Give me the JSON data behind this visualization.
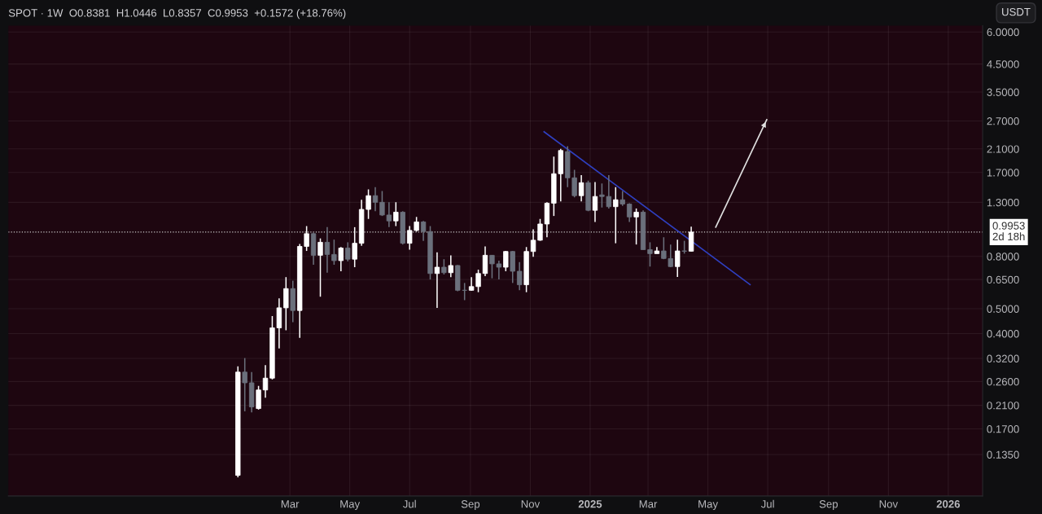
{
  "chart_data": {
    "type": "candlestick",
    "title": "SPOT · 1W  O0.8381  H1.0446  L0.8357  C0.9953  +0.1572 (+18.76%)",
    "log": "y",
    "grid": true,
    "xlim": [
      "2023-05-19",
      "2026-02-05"
    ],
    "xticks": [
      {
        "value": "2024-03-01",
        "label": "Mar"
      },
      {
        "value": "2024-05-01",
        "label": "May"
      },
      {
        "value": "2024-07-01",
        "label": "Jul"
      },
      {
        "value": "2024-09-01",
        "label": "Sep"
      },
      {
        "value": "2024-11-01",
        "label": "Nov"
      },
      {
        "value": "2025-01-01",
        "label": "2025"
      },
      {
        "value": "2025-03-01",
        "label": "Mar"
      },
      {
        "value": "2025-05-01",
        "label": "May"
      },
      {
        "value": "2025-07-01",
        "label": "Jul"
      },
      {
        "value": "2025-09-01",
        "label": "Sep"
      },
      {
        "value": "2025-11-01",
        "label": "Nov"
      },
      {
        "value": "2026-01-01",
        "label": "2026"
      }
    ],
    "ylim": [
      0.093,
      6.35
    ],
    "yticks": [
      {
        "value": 0.135,
        "label": "0.1350"
      },
      {
        "value": 0.17,
        "label": "0.1700"
      },
      {
        "value": 0.21,
        "label": "0.2100"
      },
      {
        "value": 0.26,
        "label": "0.2600"
      },
      {
        "value": 0.32,
        "label": "0.3200"
      },
      {
        "value": 0.4,
        "label": "0.4000"
      },
      {
        "value": 0.5,
        "label": "0.5000"
      },
      {
        "value": 0.65,
        "label": "0.6500"
      },
      {
        "value": 0.8,
        "label": "0.8000"
      },
      {
        "value": 1.3,
        "label": "1.3000"
      },
      {
        "value": 1.7,
        "label": "1.7000"
      },
      {
        "value": 2.1,
        "label": "2.1000"
      },
      {
        "value": 2.7,
        "label": "2.7000"
      },
      {
        "value": 3.5,
        "label": "3.5000"
      },
      {
        "value": 4.5,
        "label": "4.5000"
      },
      {
        "value": 6,
        "label": "6.0000"
      }
    ],
    "ref_lines": [
      {
        "axis": "y",
        "value": 0.9953,
        "label": "0.9953\n2d 18h",
        "color": "#c8c8c8",
        "line_style": "dotted"
      }
    ],
    "annotations": [
      "USDT"
    ],
    "x": [
      "2024-01-08",
      "2024-01-15",
      "2024-01-22",
      "2024-01-29",
      "2024-02-05",
      "2024-02-12",
      "2024-02-19",
      "2024-02-26",
      "2024-03-04",
      "2024-03-11",
      "2024-03-18",
      "2024-03-25",
      "2024-04-01",
      "2024-04-08",
      "2024-04-15",
      "2024-04-22",
      "2024-04-29",
      "2024-05-06",
      "2024-05-13",
      "2024-05-20",
      "2024-05-27",
      "2024-06-03",
      "2024-06-10",
      "2024-06-17",
      "2024-06-24",
      "2024-07-01",
      "2024-07-08",
      "2024-07-15",
      "2024-07-22",
      "2024-07-29",
      "2024-08-05",
      "2024-08-12",
      "2024-08-19",
      "2024-08-26",
      "2024-09-02",
      "2024-09-09",
      "2024-09-16",
      "2024-09-23",
      "2024-09-30",
      "2024-10-07",
      "2024-10-14",
      "2024-10-21",
      "2024-10-28",
      "2024-11-04",
      "2024-11-11",
      "2024-11-18",
      "2024-11-25",
      "2024-12-02",
      "2024-12-09",
      "2024-12-16",
      "2024-12-23",
      "2024-12-30",
      "2025-01-06",
      "2025-01-13",
      "2025-01-20",
      "2025-01-27",
      "2025-02-03",
      "2025-02-10",
      "2025-02-17",
      "2025-02-24",
      "2025-03-03",
      "2025-03-10",
      "2025-03-17",
      "2025-03-24",
      "2025-03-31",
      "2025-04-07",
      "2025-04-14"
    ],
    "ohlc": [
      [
        0.112,
        0.298,
        0.11,
        0.283
      ],
      [
        0.283,
        0.321,
        0.199,
        0.257
      ],
      [
        0.257,
        0.283,
        0.197,
        0.207
      ],
      [
        0.204,
        0.25,
        0.202,
        0.241
      ],
      [
        0.241,
        0.301,
        0.225,
        0.268
      ],
      [
        0.268,
        0.468,
        0.265,
        0.421
      ],
      [
        0.421,
        0.549,
        0.35,
        0.504
      ],
      [
        0.504,
        0.664,
        0.412,
        0.599
      ],
      [
        0.599,
        0.643,
        0.443,
        0.492
      ],
      [
        0.492,
        0.894,
        0.385,
        0.875
      ],
      [
        0.875,
        1.05,
        0.84,
        0.981
      ],
      [
        0.981,
        0.99,
        0.742,
        0.808
      ],
      [
        0.808,
        0.94,
        0.557,
        0.908
      ],
      [
        0.908,
        1.04,
        0.691,
        0.814
      ],
      [
        0.814,
        0.93,
        0.742,
        0.77
      ],
      [
        0.77,
        0.87,
        0.7,
        0.862
      ],
      [
        0.862,
        0.908,
        0.765,
        0.78
      ],
      [
        0.78,
        1.04,
        0.726,
        0.9
      ],
      [
        0.9,
        1.33,
        0.88,
        1.22
      ],
      [
        1.22,
        1.46,
        1.12,
        1.38
      ],
      [
        1.38,
        1.49,
        1.2,
        1.3
      ],
      [
        1.3,
        1.44,
        1.15,
        1.16
      ],
      [
        1.16,
        1.3,
        1.04,
        1.1
      ],
      [
        1.1,
        1.3,
        1.05,
        1.19
      ],
      [
        1.19,
        1.2,
        0.89,
        0.9
      ],
      [
        0.9,
        1.05,
        0.85,
        1.01
      ],
      [
        1.01,
        1.14,
        1.0,
        1.09
      ],
      [
        1.09,
        1.1,
        0.92,
        1.0
      ],
      [
        1.0,
        1.05,
        0.65,
        0.686
      ],
      [
        0.686,
        0.83,
        0.504,
        0.726
      ],
      [
        0.726,
        0.78,
        0.68,
        0.691
      ],
      [
        0.691,
        0.808,
        0.664,
        0.737
      ],
      [
        0.737,
        0.74,
        0.585,
        0.59
      ],
      [
        0.59,
        0.63,
        0.54,
        0.59
      ],
      [
        0.59,
        0.664,
        0.587,
        0.61
      ],
      [
        0.61,
        0.71,
        0.58,
        0.686
      ],
      [
        0.686,
        0.875,
        0.67,
        0.808
      ],
      [
        0.808,
        0.81,
        0.657,
        0.748
      ],
      [
        0.748,
        0.77,
        0.65,
        0.726
      ],
      [
        0.726,
        0.84,
        0.7,
        0.836
      ],
      [
        0.836,
        0.84,
        0.63,
        0.7
      ],
      [
        0.7,
        0.76,
        0.59,
        0.62
      ],
      [
        0.62,
        0.87,
        0.58,
        0.836
      ],
      [
        0.836,
        1.02,
        0.797,
        0.925
      ],
      [
        0.925,
        1.12,
        0.92,
        1.07
      ],
      [
        1.07,
        1.3,
        0.95,
        1.29
      ],
      [
        1.29,
        1.96,
        1.15,
        1.68
      ],
      [
        1.68,
        2.1,
        1.31,
        2.07
      ],
      [
        2.05,
        2.15,
        1.49,
        1.62
      ],
      [
        1.62,
        1.74,
        1.36,
        1.38
      ],
      [
        1.38,
        1.66,
        1.31,
        1.55
      ],
      [
        1.55,
        1.58,
        1.2,
        1.21
      ],
      [
        1.21,
        1.56,
        1.09,
        1.37
      ],
      [
        1.39,
        1.54,
        1.24,
        1.37
      ],
      [
        1.37,
        1.66,
        1.23,
        1.25
      ],
      [
        1.25,
        1.49,
        0.9,
        1.33
      ],
      [
        1.33,
        1.44,
        1.26,
        1.28
      ],
      [
        1.28,
        1.29,
        1.09,
        1.14
      ],
      [
        1.14,
        1.23,
        0.89,
        1.19
      ],
      [
        1.19,
        1.21,
        0.85,
        0.85
      ],
      [
        0.85,
        0.908,
        0.73,
        0.82
      ],
      [
        0.82,
        0.87,
        0.82,
        0.84
      ],
      [
        0.84,
        0.95,
        0.78,
        0.785
      ],
      [
        0.785,
        0.89,
        0.726,
        0.73
      ],
      [
        0.73,
        0.93,
        0.665,
        0.84
      ],
      [
        0.84,
        0.92,
        0.82,
        0.838
      ],
      [
        0.8381,
        1.0446,
        0.8357,
        0.9953
      ]
    ],
    "colors": [
      "#ffffff",
      "#6b707c",
      "#6b707c",
      "#ffffff",
      "#ffffff",
      "#ffffff",
      "#ffffff",
      "#ffffff",
      "#6b707c",
      "#ffffff",
      "#ffffff",
      "#6b707c",
      "#ffffff",
      "#6b707c",
      "#6b707c",
      "#ffffff",
      "#6b707c",
      "#ffffff",
      "#ffffff",
      "#ffffff",
      "#6b707c",
      "#6b707c",
      "#6b707c",
      "#ffffff",
      "#6b707c",
      "#ffffff",
      "#ffffff",
      "#6b707c",
      "#6b707c",
      "#ffffff",
      "#6b707c",
      "#ffffff",
      "#6b707c",
      "#6b707c",
      "#ffffff",
      "#ffffff",
      "#ffffff",
      "#6b707c",
      "#6b707c",
      "#ffffff",
      "#6b707c",
      "#6b707c",
      "#ffffff",
      "#ffffff",
      "#ffffff",
      "#ffffff",
      "#ffffff",
      "#ffffff",
      "#6b707c",
      "#6b707c",
      "#ffffff",
      "#6b707c",
      "#ffffff",
      "#6b707c",
      "#6b707c",
      "#ffffff",
      "#6b707c",
      "#6b707c",
      "#ffffff",
      "#6b707c",
      "#6b707c",
      "#ffffff",
      "#6b707c",
      "#6b707c",
      "#ffffff",
      "#6b707c",
      "#ffffff"
    ],
    "series": [
      {
        "type": "line",
        "color": "#2f3fbf",
        "x": [
          "2024-11-15",
          "2025-06-13"
        ],
        "values": [
          2.45,
          0.621
        ]
      },
      {
        "type": "line",
        "color": "#e0e0e0",
        "x": [
          "2025-05-09",
          "2025-06-30"
        ],
        "values": [
          1.04,
          2.73
        ]
      }
    ]
  }
}
